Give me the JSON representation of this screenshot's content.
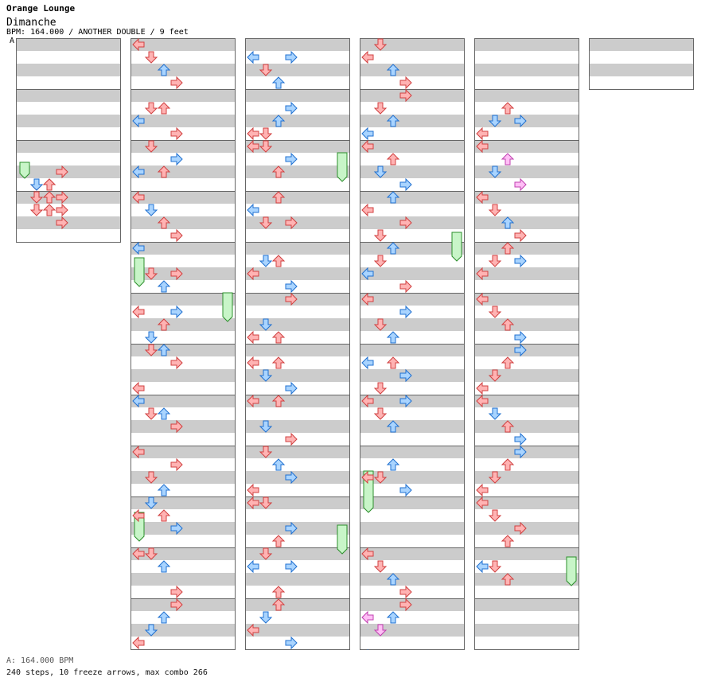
{
  "header": {
    "artist": "Orange Lounge",
    "title": "Dimanche",
    "info": "BPM: 164.000 / ANOTHER DOUBLE / 9 feet"
  },
  "marker": "A",
  "footer": {
    "bpm_line": "A: 164.000 BPM",
    "steps_line": "240 steps, 10 freeze arrows, max combo 266"
  },
  "colors": {
    "quarter": "#ffb3b3",
    "eighth": "#a9d4ff",
    "sixteenth": "#ffbff6",
    "freeze": "#c8f5c8",
    "stripe": "#cccccc",
    "frame": "#666666"
  },
  "chart": {
    "lanes": 8,
    "lane_order": [
      "left",
      "down",
      "up",
      "right",
      "left",
      "down",
      "up",
      "right"
    ],
    "beats_per_measure": 4,
    "rows_per_beat": 4,
    "column_measures": [
      4,
      12,
      12,
      12,
      12,
      1
    ],
    "notes": [
      [
        1,
        7,
        1,
        "q"
      ],
      [
        1,
        7,
        2,
        "q"
      ],
      [
        1,
        6,
        3,
        "q"
      ],
      [
        2,
        3,
        1,
        "e"
      ],
      [
        2,
        3,
        2,
        "q"
      ],
      [
        2,
        5,
        1,
        "q"
      ],
      [
        2,
        5,
        2,
        "q"
      ],
      [
        2,
        4,
        3,
        "q"
      ],
      [
        3,
        0,
        1,
        "q"
      ],
      [
        3,
        0,
        2,
        "q"
      ],
      [
        3,
        1,
        3,
        "q"
      ],
      [
        3,
        2,
        3,
        "q"
      ],
      [
        4,
        0,
        0,
        "q"
      ],
      [
        4,
        1,
        1,
        "q"
      ],
      [
        4,
        2,
        2,
        "e"
      ],
      [
        4,
        3,
        3,
        "q"
      ],
      [
        5,
        2,
        0,
        "e"
      ],
      [
        5,
        1,
        1,
        "q"
      ],
      [
        5,
        1,
        2,
        "q"
      ],
      [
        5,
        3,
        3,
        "q"
      ],
      [
        6,
        2,
        0,
        "e"
      ],
      [
        6,
        0,
        1,
        "q"
      ],
      [
        6,
        2,
        2,
        "q"
      ],
      [
        6,
        1,
        3,
        "e"
      ],
      [
        7,
        0,
        0,
        "q"
      ],
      [
        7,
        1,
        1,
        "e"
      ],
      [
        7,
        2,
        2,
        "q"
      ],
      [
        7,
        3,
        3,
        "q"
      ],
      [
        8,
        0,
        0,
        "e"
      ],
      [
        8,
        2,
        1,
        "q"
      ],
      [
        8,
        3,
        2,
        "e"
      ],
      [
        8,
        2,
        3,
        "q"
      ],
      [
        9,
        1,
        0,
        "q"
      ],
      [
        9,
        3,
        1,
        "e"
      ],
      [
        9,
        2,
        2,
        "q"
      ],
      [
        9,
        1,
        3,
        "e"
      ],
      [
        10,
        3,
        0,
        "q"
      ],
      [
        10,
        0,
        1,
        "q"
      ],
      [
        10,
        0,
        2,
        "e"
      ],
      [
        10,
        1,
        3,
        "q"
      ],
      [
        11,
        0,
        0,
        "e"
      ],
      [
        11,
        1,
        1,
        "q"
      ],
      [
        11,
        1,
        2,
        "e"
      ],
      [
        11,
        2,
        3,
        "q"
      ],
      [
        12,
        0,
        0,
        "q"
      ],
      [
        12,
        2,
        1,
        "q"
      ],
      [
        12,
        3,
        2,
        "e"
      ],
      [
        12,
        1,
        3,
        "q"
      ],
      [
        13,
        1,
        0,
        "q"
      ],
      [
        13,
        0,
        1,
        "e"
      ],
      [
        13,
        1,
        2,
        "q"
      ],
      [
        13,
        2,
        3,
        "e"
      ],
      [
        14,
        0,
        0,
        "q"
      ],
      [
        14,
        0,
        1,
        "q"
      ],
      [
        14,
        1,
        2,
        "e"
      ],
      [
        14,
        3,
        3,
        "q"
      ],
      [
        15,
        3,
        0,
        "q"
      ],
      [
        15,
        2,
        1,
        "e"
      ],
      [
        15,
        1,
        2,
        "e"
      ],
      [
        15,
        0,
        3,
        "q"
      ],
      [
        16,
        1,
        0,
        "e"
      ],
      [
        16,
        2,
        1,
        "q"
      ],
      [
        16,
        3,
        2,
        "e"
      ],
      [
        16,
        1,
        3,
        "e"
      ],
      [
        17,
        3,
        0,
        "q"
      ],
      [
        17,
        3,
        1,
        "q"
      ],
      [
        17,
        2,
        2,
        "e"
      ],
      [
        17,
        1,
        3,
        "e"
      ],
      [
        18,
        0,
        0,
        "q"
      ],
      [
        18,
        0,
        1,
        "q"
      ],
      [
        18,
        2,
        2,
        "q"
      ],
      [
        18,
        1,
        3,
        "e"
      ],
      [
        19,
        1,
        0,
        "e"
      ],
      [
        19,
        2,
        1,
        "q"
      ],
      [
        19,
        0,
        2,
        "q"
      ],
      [
        19,
        2,
        3,
        "q"
      ],
      [
        20,
        2,
        0,
        "q"
      ],
      [
        20,
        1,
        1,
        "e"
      ],
      [
        20,
        1,
        2,
        "q"
      ],
      [
        20,
        3,
        3,
        "e"
      ],
      [
        21,
        3,
        0,
        "q"
      ],
      [
        21,
        2,
        1,
        "e"
      ],
      [
        21,
        3,
        2,
        "q"
      ],
      [
        21,
        0,
        3,
        "q"
      ],
      [
        22,
        1,
        0,
        "q"
      ],
      [
        22,
        2,
        1,
        "e"
      ],
      [
        22,
        1,
        2,
        "q"
      ],
      [
        22,
        3,
        3,
        "e"
      ],
      [
        23,
        0,
        0,
        "q"
      ],
      [
        23,
        2,
        1,
        "e"
      ],
      [
        23,
        0,
        2,
        "q"
      ],
      [
        23,
        3,
        3,
        "q"
      ],
      [
        24,
        3,
        0,
        "q"
      ],
      [
        24,
        0,
        1,
        "q"
      ],
      [
        24,
        1,
        2,
        "e"
      ],
      [
        24,
        2,
        3,
        "e"
      ],
      [
        25,
        0,
        0,
        "q"
      ],
      [
        25,
        0,
        1,
        "q"
      ],
      [
        25,
        3,
        2,
        "q"
      ],
      [
        25,
        2,
        3,
        "e"
      ],
      [
        26,
        1,
        0,
        "e"
      ],
      [
        26,
        0,
        1,
        "q"
      ],
      [
        26,
        3,
        2,
        "q"
      ],
      [
        26,
        1,
        3,
        "e"
      ],
      [
        27,
        2,
        0,
        "q"
      ],
      [
        27,
        1,
        1,
        "e"
      ],
      [
        27,
        0,
        2,
        "q"
      ],
      [
        27,
        3,
        3,
        "e"
      ],
      [
        28,
        1,
        0,
        "q"
      ],
      [
        28,
        0,
        1,
        "q"
      ],
      [
        28,
        2,
        2,
        "e"
      ],
      [
        28,
        3,
        3,
        "q"
      ],
      [
        29,
        3,
        0,
        "e"
      ],
      [
        29,
        1,
        1,
        "q"
      ],
      [
        29,
        2,
        2,
        "e"
      ],
      [
        29,
        0,
        3,
        "q"
      ],
      [
        30,
        0,
        0,
        "q"
      ],
      [
        30,
        2,
        1,
        "e"
      ],
      [
        30,
        1,
        2,
        "q"
      ],
      [
        30,
        3,
        3,
        "e"
      ],
      [
        31,
        1,
        0,
        "q"
      ],
      [
        31,
        3,
        1,
        "q"
      ],
      [
        31,
        0,
        2,
        "e"
      ],
      [
        31,
        2,
        3,
        "q"
      ],
      [
        32,
        2,
        0,
        "e"
      ],
      [
        32,
        1,
        1,
        "q"
      ],
      [
        32,
        0,
        2,
        "e"
      ],
      [
        32,
        3,
        3,
        "q"
      ],
      [
        33,
        0,
        0,
        "q"
      ],
      [
        33,
        2,
        1,
        "q"
      ],
      [
        33,
        3,
        2,
        "e"
      ],
      [
        33,
        1,
        3,
        "e"
      ],
      [
        34,
        1,
        0,
        "e"
      ],
      [
        34,
        3,
        1,
        "q"
      ],
      [
        34,
        1,
        2,
        "q"
      ],
      [
        34,
        2,
        3,
        "e"
      ],
      [
        35,
        0,
        0,
        "q"
      ],
      [
        35,
        1,
        1,
        "q"
      ],
      [
        35,
        2,
        2,
        "e"
      ],
      [
        35,
        0,
        3,
        "e"
      ],
      [
        36,
        2,
        0,
        "q"
      ],
      [
        36,
        2,
        1,
        "q"
      ],
      [
        36,
        1,
        2,
        "e"
      ],
      [
        36,
        3,
        3,
        "e"
      ],
      [
        37,
        4,
        0,
        "q"
      ],
      [
        37,
        5,
        1,
        "q"
      ],
      [
        37,
        6,
        2,
        "e"
      ],
      [
        37,
        7,
        3,
        "q"
      ],
      [
        38,
        5,
        0,
        "s"
      ],
      [
        38,
        6,
        1,
        "s"
      ],
      [
        38,
        5,
        2,
        "e"
      ],
      [
        38,
        4,
        3,
        "q"
      ],
      [
        39,
        4,
        0,
        "e"
      ],
      [
        39,
        5,
        1,
        "q"
      ],
      [
        39,
        6,
        2,
        "s"
      ],
      [
        39,
        5,
        3,
        "s"
      ],
      [
        40,
        7,
        0,
        "q"
      ],
      [
        40,
        6,
        1,
        "e"
      ],
      [
        40,
        5,
        2,
        "q"
      ],
      [
        40,
        6,
        3,
        "e"
      ],
      [
        41,
        4,
        0,
        "q"
      ],
      [
        41,
        6,
        1,
        "e"
      ],
      [
        41,
        5,
        2,
        "s"
      ],
      [
        41,
        7,
        3,
        "s"
      ],
      [
        42,
        4,
        0,
        "q"
      ],
      [
        42,
        5,
        1,
        "q"
      ],
      [
        42,
        6,
        2,
        "e"
      ],
      [
        42,
        7,
        3,
        "q"
      ],
      [
        43,
        6,
        0,
        "q"
      ],
      [
        43,
        5,
        1,
        "q"
      ],
      [
        43,
        4,
        2,
        "q"
      ],
      [
        43,
        5,
        3,
        "e"
      ],
      [
        44,
        4,
        0,
        "q"
      ],
      [
        44,
        5,
        1,
        "q"
      ],
      [
        44,
        6,
        2,
        "q"
      ],
      [
        44,
        7,
        3,
        "e"
      ],
      [
        45,
        7,
        0,
        "q"
      ],
      [
        45,
        6,
        1,
        "q"
      ],
      [
        45,
        5,
        2,
        "q"
      ],
      [
        45,
        4,
        3,
        "e"
      ],
      [
        46,
        4,
        0,
        "q"
      ],
      [
        46,
        5,
        1,
        "e"
      ],
      [
        46,
        6,
        2,
        "q"
      ],
      [
        46,
        7,
        3,
        "e"
      ],
      [
        47,
        7,
        0,
        "q"
      ],
      [
        47,
        6,
        1,
        "q"
      ],
      [
        47,
        5,
        2,
        "q"
      ],
      [
        47,
        4,
        3,
        "e"
      ],
      [
        48,
        4,
        0,
        "q"
      ],
      [
        48,
        5,
        1,
        "q"
      ],
      [
        48,
        7,
        2,
        "q"
      ],
      [
        48,
        6,
        3,
        "q"
      ],
      [
        49,
        5,
        0,
        "e"
      ],
      [
        49,
        5,
        1,
        "q"
      ],
      [
        49,
        6,
        2,
        "q"
      ]
    ],
    "freezes": [
      [
        2,
        2,
        0,
        1,
        "l"
      ],
      [
        3,
        5,
        0,
        1,
        "l"
      ],
      [
        7,
        5,
        2,
        2,
        "l"
      ],
      [
        9,
        0,
        1,
        2,
        "r"
      ],
      [
        13,
        1,
        2,
        2,
        "l"
      ],
      [
        18,
        1,
        1,
        2,
        "r"
      ],
      [
        25,
        2,
        2,
        2,
        "r"
      ],
      [
        30,
        7,
        2,
        2,
        "r"
      ],
      [
        35,
        6,
        1,
        3,
        "l"
      ],
      [
        49,
        5,
        0,
        2,
        "r"
      ]
    ]
  }
}
